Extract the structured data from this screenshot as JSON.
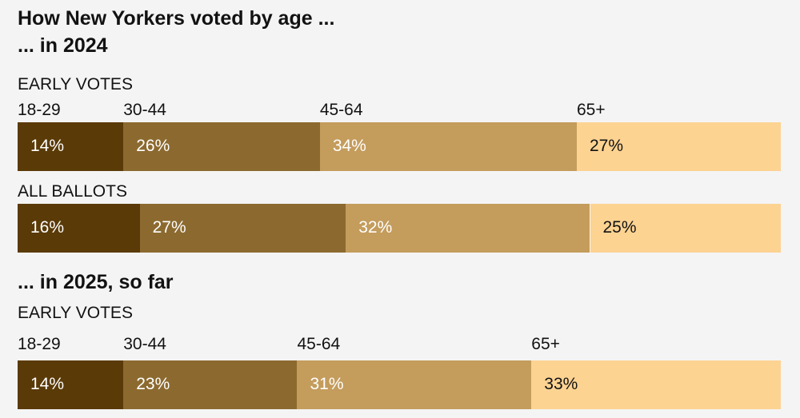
{
  "title": "How New Yorkers voted by age ...",
  "chart_data": {
    "type": "stacked-bar",
    "categories": [
      "18-29",
      "30-44",
      "45-64",
      "65+"
    ],
    "colors": [
      "#5a3a06",
      "#8c6a2f",
      "#c49c5c",
      "#fdd392"
    ],
    "label_colors": [
      "#ffffff",
      "#ffffff",
      "#ffffff",
      "#121212"
    ],
    "groups": [
      {
        "heading": "... in 2024",
        "bars": [
          {
            "label": "EARLY VOTES",
            "values": [
              14,
              26,
              34,
              27
            ],
            "show_categories": true
          },
          {
            "label": "ALL BALLOTS",
            "values": [
              16,
              27,
              32,
              25
            ],
            "show_categories": false
          }
        ]
      },
      {
        "heading": "... in 2025, so far",
        "bars": [
          {
            "label": "EARLY VOTES",
            "values": [
              14,
              23,
              31,
              33
            ],
            "show_categories": true
          }
        ]
      }
    ]
  }
}
